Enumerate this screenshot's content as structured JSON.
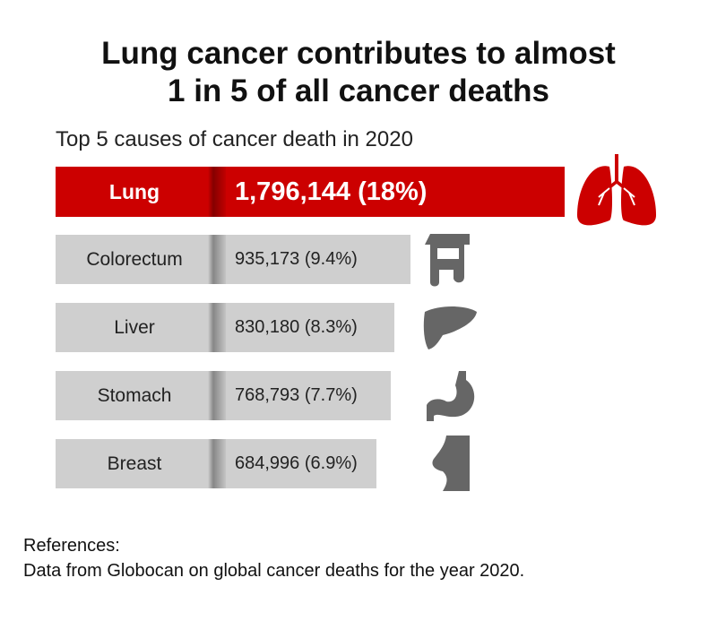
{
  "header": {
    "title": [
      "Lung cancer contributes to almost",
      "1 in 5 of all cancer deaths"
    ],
    "subtitle": "Top 5 causes of cancer death in 2020"
  },
  "rows": [
    {
      "cause": "Lung",
      "deaths": "1,796,144 (18%)"
    },
    {
      "cause": "Colorectum",
      "deaths": "935,173 (9.4%)"
    },
    {
      "cause": "Liver",
      "deaths": "830,180 (8.3%)"
    },
    {
      "cause": "Stomach",
      "deaths": "768,793 (7.7%)"
    },
    {
      "cause": "Breast",
      "deaths": "684,996 (6.9%)"
    }
  ],
  "references": {
    "heading": "References:",
    "text": "Data from Globocan on global cancer deaths for the year 2020."
  }
}
